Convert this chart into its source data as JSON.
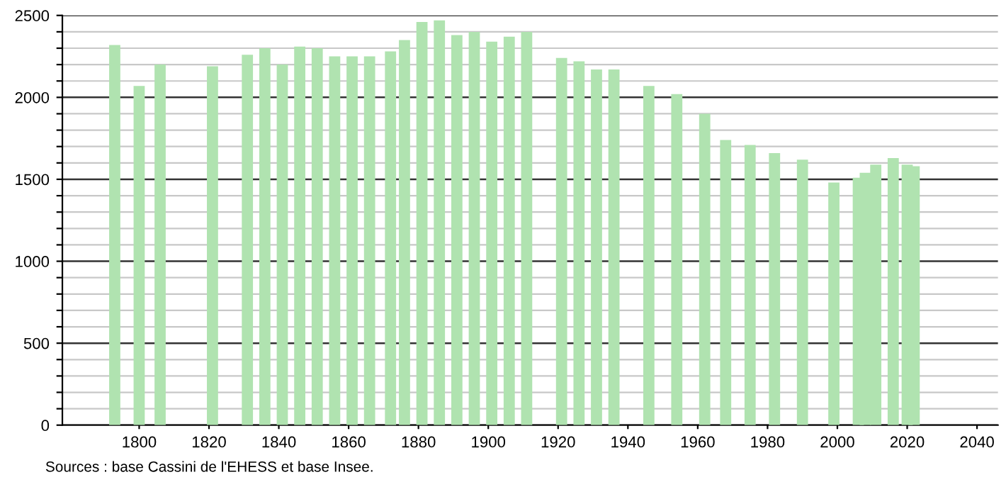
{
  "chart_data": {
    "type": "bar",
    "x": [
      1793,
      1800,
      1806,
      1821,
      1831,
      1836,
      1841,
      1846,
      1851,
      1856,
      1861,
      1866,
      1872,
      1876,
      1881,
      1886,
      1891,
      1896,
      1901,
      1906,
      1911,
      1921,
      1926,
      1931,
      1936,
      1946,
      1954,
      1962,
      1968,
      1975,
      1982,
      1990,
      1999,
      2006,
      2008,
      2011,
      2016,
      2020,
      2022
    ],
    "series": [
      {
        "color": "#b0e3b0",
        "values": [
          2320,
          2070,
          2200,
          2190,
          2260,
          2300,
          2200,
          2310,
          2300,
          2250,
          2250,
          2250,
          2280,
          2350,
          2460,
          2470,
          2380,
          2400,
          2340,
          2370,
          2400,
          2240,
          2220,
          2170,
          2170,
          2070,
          2020,
          1900,
          1740,
          1710,
          1660,
          1620,
          1480,
          1510,
          1540,
          1590,
          1630,
          1590,
          1580
        ]
      }
    ],
    "xlim": [
      1778,
      2046
    ],
    "xticks": [
      1800,
      1820,
      1840,
      1860,
      1880,
      1900,
      1920,
      1940,
      1960,
      1980,
      2000,
      2020,
      2040
    ],
    "ylim": [
      0,
      2500
    ],
    "yticks": [
      0,
      {
        "value": 100,
        "label": null
      },
      {
        "value": 200,
        "label": null
      },
      {
        "value": 300,
        "label": null
      },
      {
        "value": 400,
        "label": null
      },
      500,
      {
        "value": 600,
        "label": null
      },
      {
        "value": 700,
        "label": null
      },
      {
        "value": 800,
        "label": null
      },
      {
        "value": 900,
        "label": null
      },
      1000,
      {
        "value": 1100,
        "label": null
      },
      {
        "value": 1200,
        "label": null
      },
      {
        "value": 1300,
        "label": null
      },
      {
        "value": 1400,
        "label": null
      },
      1500,
      {
        "value": 1600,
        "label": null
      },
      {
        "value": 1700,
        "label": null
      },
      {
        "value": 1800,
        "label": null
      },
      {
        "value": 1900,
        "label": null
      },
      2000,
      {
        "value": 2100,
        "label": null
      },
      {
        "value": 2200,
        "label": null
      },
      {
        "value": 2300,
        "label": null
      },
      {
        "value": 2400,
        "label": null
      },
      2500
    ],
    "grid": "y",
    "legend": false,
    "annotations": [
      "Sources : base Cassini de l'EHESS et base Insee."
    ]
  }
}
